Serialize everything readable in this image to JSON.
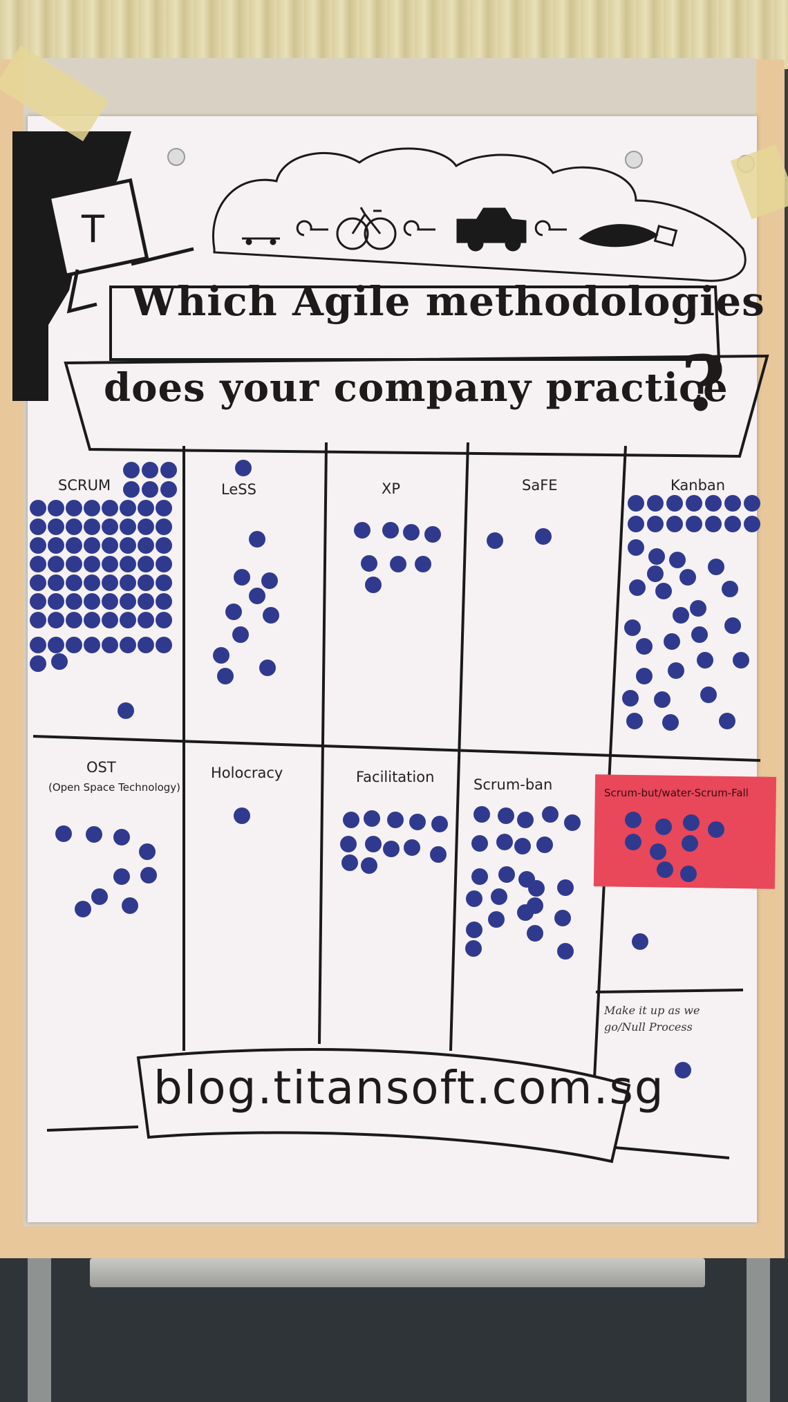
{
  "title_line1": "Which Agile methodologies",
  "title_line2": "does your company practice",
  "title_mark": "?",
  "logo_letter": "T",
  "footer_url": "blog.titansoft.com.sg",
  "categories": [
    {
      "label": "SCRUM"
    },
    {
      "label": "LeSS"
    },
    {
      "label": "XP"
    },
    {
      "label": "SaFE"
    },
    {
      "label": "Kanban"
    },
    {
      "label": "OST"
    },
    {
      "label": "(Open Space Technology)"
    },
    {
      "label": "Holocracy"
    },
    {
      "label": "Facilitation"
    },
    {
      "label": "Scrum-ban"
    },
    {
      "label": "Scrum-but/water-Scrum-Fall"
    },
    {
      "label": "Make it up as we go/Null Process"
    }
  ],
  "colors": {
    "dot": "#2f3a8f",
    "sticky_note": "#e8485a",
    "paper": "#f6f1f3",
    "ink": "#1f1a1a"
  }
}
